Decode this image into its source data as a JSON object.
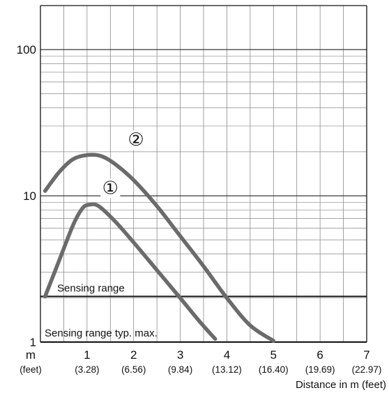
{
  "chart_data": {
    "type": "line",
    "title": "",
    "xlabel": "Distance in m (feet)",
    "ylabel": "",
    "xlim": [
      0,
      7
    ],
    "ylim": [
      1,
      200
    ],
    "yscale": "log",
    "grid": true,
    "x_ticks": [
      {
        "value": 0,
        "label": "m",
        "sublabel": "(feet)"
      },
      {
        "value": 1,
        "label": "1",
        "sublabel": "(3.28)"
      },
      {
        "value": 2,
        "label": "2",
        "sublabel": "(6.56)"
      },
      {
        "value": 3,
        "label": "3",
        "sublabel": "(9.84)"
      },
      {
        "value": 4,
        "label": "4",
        "sublabel": "(13.12)"
      },
      {
        "value": 5,
        "label": "5",
        "sublabel": "(16.40)"
      },
      {
        "value": 6,
        "label": "6",
        "sublabel": "(19.69)"
      },
      {
        "value": 7,
        "label": "7",
        "sublabel": "(22.97)"
      }
    ],
    "y_ticks": [
      {
        "value": 1,
        "label": "1"
      },
      {
        "value": 10,
        "label": "10"
      },
      {
        "value": 100,
        "label": "100"
      }
    ],
    "series": [
      {
        "name": "①",
        "color": "#6b6b6b",
        "points": [
          [
            0.1,
            2.05
          ],
          [
            0.4,
            3.6
          ],
          [
            0.7,
            6.3
          ],
          [
            0.9,
            8.2
          ],
          [
            1.05,
            8.7
          ],
          [
            1.25,
            8.5
          ],
          [
            1.6,
            6.7
          ],
          [
            2.0,
            4.8
          ],
          [
            2.5,
            3.1
          ],
          [
            3.0,
            2.0
          ],
          [
            3.4,
            1.4
          ],
          [
            3.75,
            1.05
          ]
        ]
      },
      {
        "name": "②",
        "color": "#6b6b6b",
        "points": [
          [
            0.1,
            10.8
          ],
          [
            0.4,
            14.5
          ],
          [
            0.7,
            17.8
          ],
          [
            1.0,
            19.0
          ],
          [
            1.3,
            18.7
          ],
          [
            1.6,
            16.5
          ],
          [
            2.0,
            12.8
          ],
          [
            2.5,
            8.5
          ],
          [
            3.0,
            5.3
          ],
          [
            3.5,
            3.3
          ],
          [
            4.0,
            2.0
          ],
          [
            4.5,
            1.3
          ],
          [
            5.0,
            1.02
          ]
        ]
      }
    ],
    "series_labels": [
      {
        "text": "①",
        "x": 1.5,
        "y": 10.3
      },
      {
        "text": "②",
        "x": 2.05,
        "y": 22.0
      }
    ],
    "reference_lines": [
      {
        "label": "Sensing range",
        "y": 2.05
      },
      {
        "label": "Sensing range typ. max.",
        "y": 1.0
      }
    ]
  }
}
